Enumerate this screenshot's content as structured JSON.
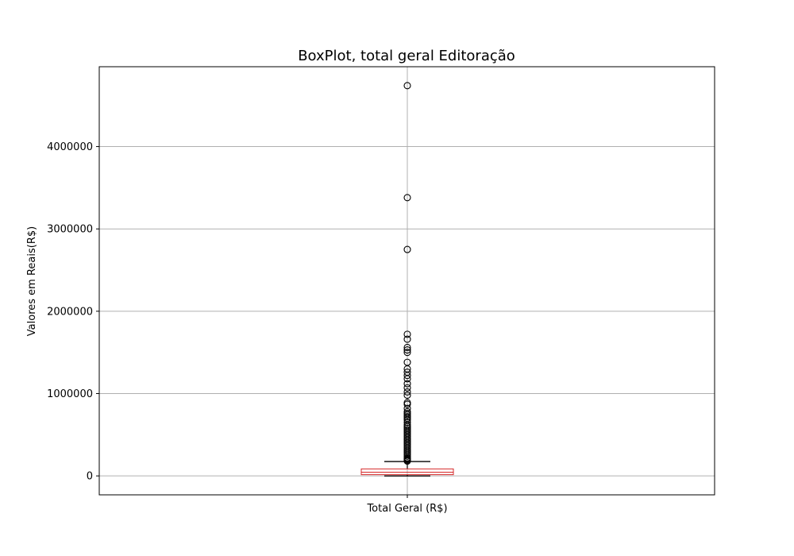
{
  "chart_data": {
    "type": "box",
    "title": "BoxPlot, total geral Editoração",
    "xlabel": "",
    "ylabel": "Valores em Reais(R$)",
    "categories": [
      "Total Geral (R$)"
    ],
    "ylim": [
      -230000,
      4970000
    ],
    "yticks": [
      0,
      1000000,
      2000000,
      3000000,
      4000000
    ],
    "ytick_labels": [
      "0",
      "1000000",
      "2000000",
      "3000000",
      "4000000"
    ],
    "grid": true,
    "colors": {
      "box": "#d62728",
      "median": "#d62728",
      "whisker": "#000000",
      "flier": "#000000",
      "grid": "#b0b0b0"
    },
    "box": {
      "min": 0,
      "q1": 15000,
      "median": 45000,
      "q3": 85000,
      "max": 175000
    },
    "fliers": [
      4740000,
      3380000,
      2750000,
      1720000,
      1660000,
      1560000,
      1530000,
      1500000,
      1380000,
      1300000,
      1260000,
      1220000,
      1180000,
      1120000,
      1070000,
      1020000,
      980000,
      890000,
      870000,
      820000,
      780000,
      760000,
      740000,
      720000,
      700000,
      680000,
      650000,
      620000,
      600000,
      580000,
      560000,
      540000,
      520000,
      500000,
      480000,
      460000,
      440000,
      420000,
      400000,
      380000,
      360000,
      340000,
      320000,
      300000,
      280000,
      260000,
      240000,
      220000,
      210000,
      200000,
      190000,
      180000
    ]
  }
}
